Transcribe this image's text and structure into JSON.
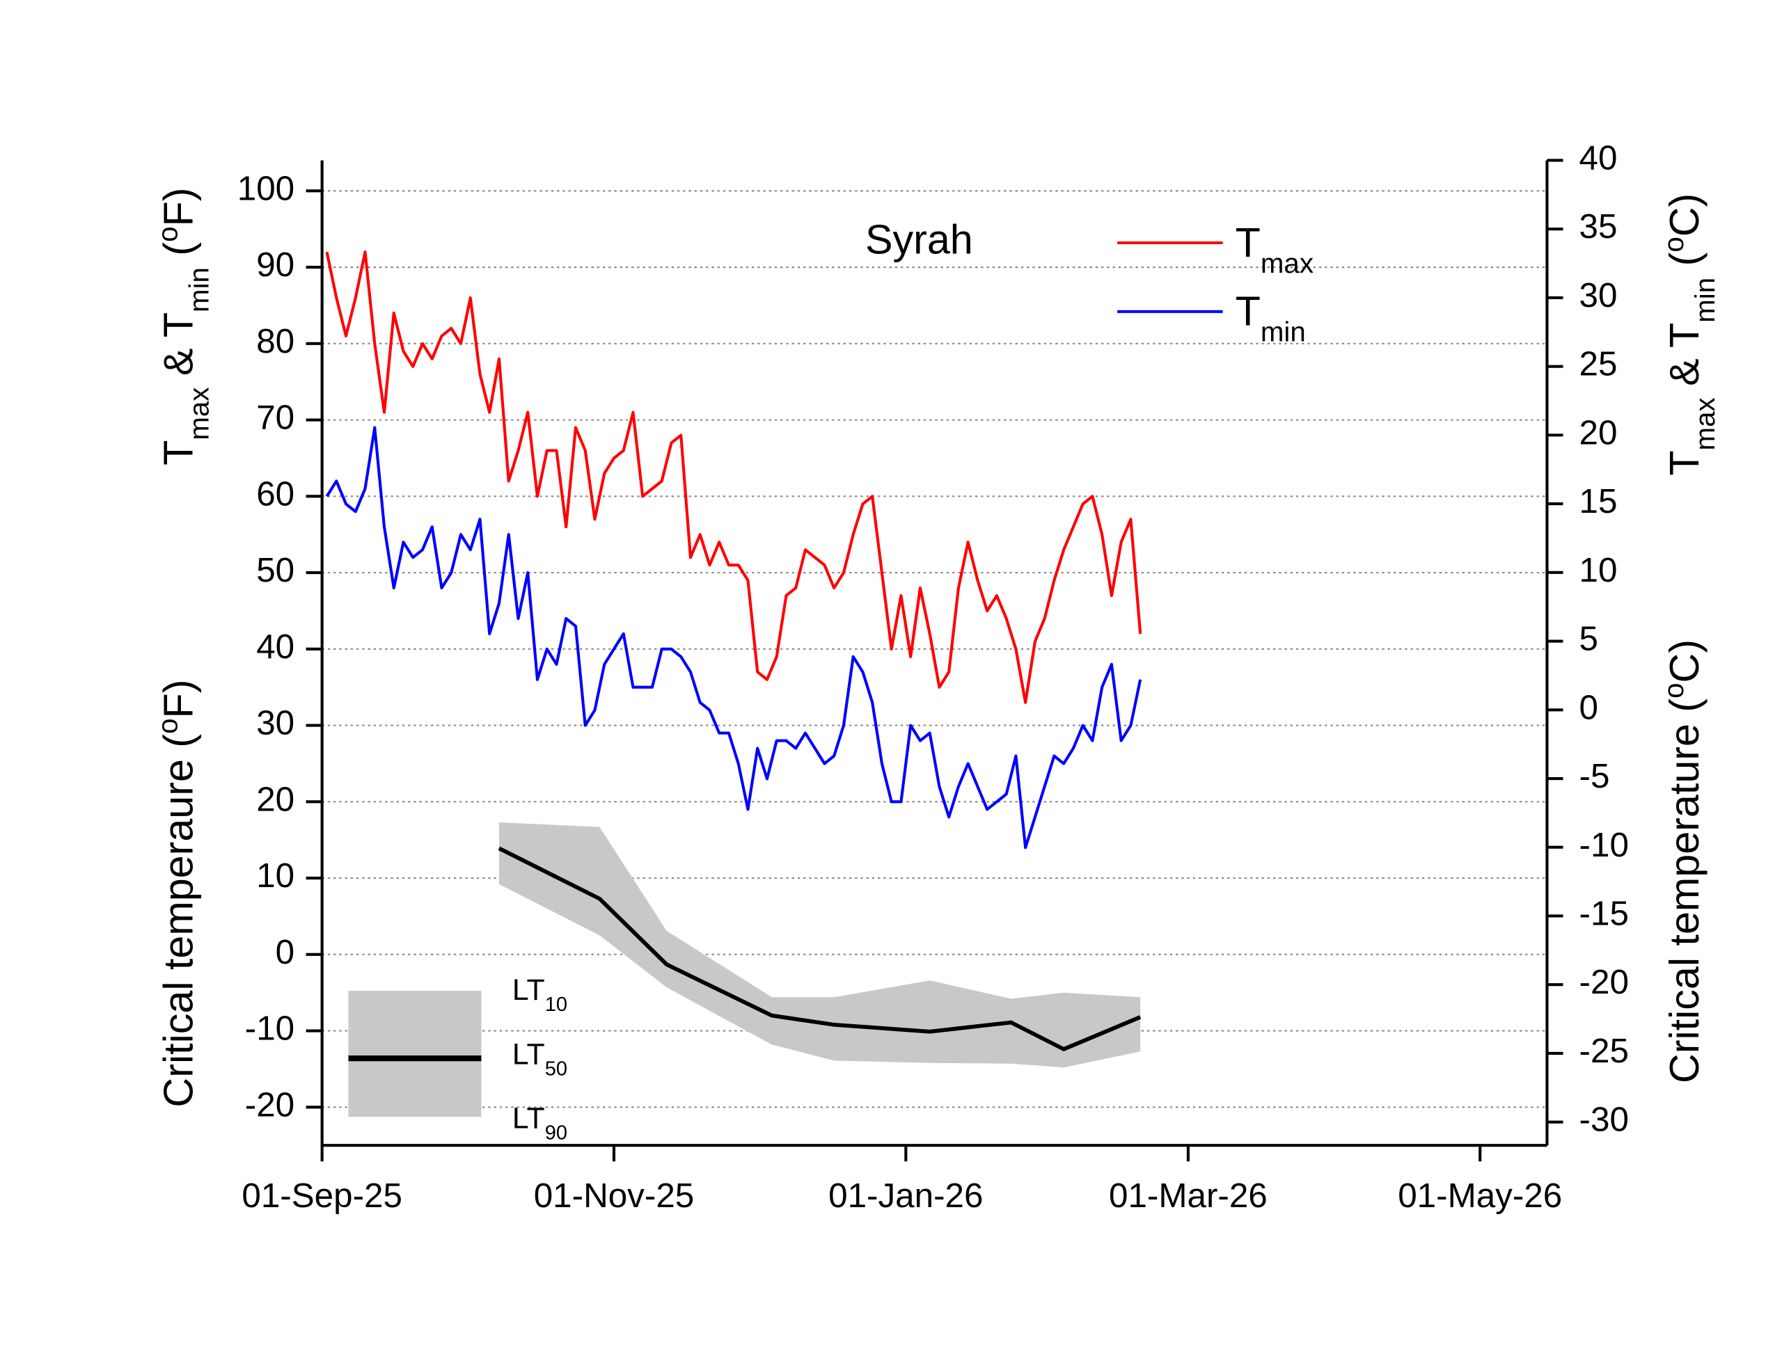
{
  "chart_data": {
    "type": "line",
    "title": "Syrah",
    "y_label": [
      "T",
      "max",
      " & T",
      "min",
      " (",
      "o",
      "F)"
    ],
    "y_label_2": [
      "Critical temperaure (",
      "o",
      "F)"
    ],
    "y2_label": [
      "T",
      "max",
      " & T",
      "min",
      " (",
      "o",
      "C)"
    ],
    "y2_label_2": [
      "Critical temperature (",
      "o",
      "C)"
    ],
    "xlim": [
      "2025-09-01",
      "2026-05-15"
    ],
    "xticks": [
      {
        "value": "2025-09-01",
        "label": "01-Sep-25"
      },
      {
        "value": "2025-11-01",
        "label": "01-Nov-25"
      },
      {
        "value": "2026-01-01",
        "label": "01-Jan-26"
      },
      {
        "value": "2026-03-01",
        "label": "01-Mar-26"
      },
      {
        "value": "2026-05-01",
        "label": "01-May-26"
      }
    ],
    "ylim": [
      -25,
      104
    ],
    "yticks": [
      -20,
      -10,
      0,
      10,
      20,
      30,
      40,
      50,
      60,
      70,
      80,
      90,
      100
    ],
    "y2lim": [
      -31.7,
      40
    ],
    "y2ticks": [
      -30,
      -25,
      -20,
      -15,
      -10,
      -5,
      0,
      5,
      10,
      15,
      20,
      25,
      30,
      35,
      40
    ],
    "grid": true,
    "x": [
      "2025-09-02",
      "2025-09-04",
      "2025-09-06",
      "2025-09-08",
      "2025-09-10",
      "2025-09-12",
      "2025-09-14",
      "2025-09-16",
      "2025-09-18",
      "2025-09-20",
      "2025-09-22",
      "2025-09-24",
      "2025-09-26",
      "2025-09-28",
      "2025-09-30",
      "2025-10-02",
      "2025-10-04",
      "2025-10-06",
      "2025-10-08",
      "2025-10-10",
      "2025-10-12",
      "2025-10-14",
      "2025-10-16",
      "2025-10-18",
      "2025-10-20",
      "2025-10-22",
      "2025-10-24",
      "2025-10-26",
      "2025-10-28",
      "2025-10-30",
      "2025-11-01",
      "2025-11-03",
      "2025-11-05",
      "2025-11-07",
      "2025-11-09",
      "2025-11-11",
      "2025-11-13",
      "2025-11-15",
      "2025-11-17",
      "2025-11-19",
      "2025-11-21",
      "2025-11-23",
      "2025-11-25",
      "2025-11-27",
      "2025-11-29",
      "2025-12-01",
      "2025-12-03",
      "2025-12-05",
      "2025-12-07",
      "2025-12-09",
      "2025-12-11",
      "2025-12-13",
      "2025-12-15",
      "2025-12-17",
      "2025-12-19",
      "2025-12-21",
      "2025-12-23",
      "2025-12-25",
      "2025-12-27",
      "2025-12-29",
      "2025-12-31",
      "2026-01-02",
      "2026-01-04",
      "2026-01-06",
      "2026-01-08",
      "2026-01-10",
      "2026-01-12",
      "2026-01-14",
      "2026-01-16",
      "2026-01-18",
      "2026-01-20",
      "2026-01-22",
      "2026-01-24",
      "2026-01-26",
      "2026-01-28",
      "2026-01-30",
      "2026-02-01",
      "2026-02-03",
      "2026-02-05",
      "2026-02-07",
      "2026-02-09",
      "2026-02-11",
      "2026-02-13",
      "2026-02-15",
      "2026-02-17",
      "2026-02-19"
    ],
    "series": [
      {
        "name": [
          "T",
          "max"
        ],
        "color": "#ff0000",
        "values": [
          92,
          86,
          81,
          86,
          92,
          80,
          71,
          84,
          79,
          77,
          80,
          78,
          81,
          82,
          80,
          86,
          76,
          71,
          78,
          62,
          66,
          71,
          60,
          66,
          66,
          56,
          69,
          66,
          57,
          63,
          65,
          66,
          71,
          60,
          61,
          62,
          67,
          68,
          52,
          55,
          51,
          54,
          51,
          51,
          49,
          37,
          36,
          39,
          47,
          48,
          53,
          52,
          51,
          48,
          50,
          55,
          59,
          60,
          50,
          40,
          47,
          39,
          48,
          42,
          35,
          37,
          48,
          54,
          49,
          45,
          47,
          44,
          40,
          33,
          41,
          44,
          49,
          53,
          56,
          59,
          60,
          55,
          47,
          54,
          57,
          42
        ]
      },
      {
        "name": [
          "T",
          "min"
        ],
        "color": "#0000ff",
        "values": [
          60,
          62,
          59,
          58,
          61,
          69,
          56,
          48,
          54,
          52,
          53,
          56,
          48,
          50,
          55,
          53,
          57,
          42,
          46,
          55,
          44,
          50,
          36,
          40,
          38,
          44,
          43,
          30,
          32,
          38,
          40,
          42,
          35,
          35,
          35,
          40,
          40,
          39,
          37,
          33,
          32,
          29,
          29,
          25,
          19,
          27,
          23,
          28,
          28,
          27,
          29,
          27,
          25,
          26,
          30,
          39,
          37,
          33,
          25,
          20,
          20,
          30,
          28,
          29,
          22,
          18,
          22,
          25,
          22,
          19,
          20,
          21,
          26,
          14,
          18,
          22,
          26,
          25,
          27,
          30,
          28,
          35,
          38,
          28,
          30,
          36
        ]
      }
    ],
    "critical": {
      "x": [
        "2025-10-08",
        "2025-10-29",
        "2025-11-12",
        "2025-12-04",
        "2025-12-17",
        "2026-01-06",
        "2026-01-23",
        "2026-02-03",
        "2026-02-19"
      ],
      "band_color": "#c8c8c8",
      "line_color": "#000000",
      "series": [
        {
          "name": [
            "LT",
            "10"
          ],
          "values": [
            17.3,
            16.7,
            3.1,
            -5.6,
            -5.6,
            -3.4,
            -5.8,
            -5.0,
            -5.6
          ]
        },
        {
          "name": [
            "LT",
            "50"
          ],
          "values": [
            13.9,
            7.3,
            -1.3,
            -8.0,
            -9.2,
            -10.1,
            -8.9,
            -12.4,
            -8.2
          ]
        },
        {
          "name": [
            "LT",
            "90"
          ],
          "values": [
            9.2,
            2.5,
            -4.3,
            -11.8,
            -13.9,
            -14.2,
            -14.3,
            -14.8,
            -12.7
          ]
        }
      ]
    }
  }
}
